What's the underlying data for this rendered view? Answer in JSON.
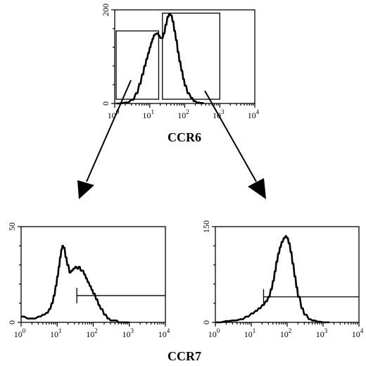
{
  "chart_data": [
    {
      "type": "histogram",
      "xlabel": "CCR6",
      "ylabel": "",
      "x_scale": "log",
      "xlim": [
        1,
        10000
      ],
      "ylim": [
        0,
        200
      ],
      "x_tick_labels": [
        {
          "base": "10",
          "exp": "0"
        },
        {
          "base": "10",
          "exp": "1"
        },
        {
          "base": "10",
          "exp": "2"
        },
        {
          "base": "10",
          "exp": "3"
        },
        {
          "base": "10",
          "exp": "4"
        }
      ],
      "y_tick_labels": [
        "0",
        "200"
      ],
      "x_tick_values": [
        1,
        10,
        100,
        1000,
        10000
      ],
      "y_tick_values": [
        0,
        200
      ],
      "gates": [
        {
          "type": "box",
          "x_range": [
            1.1,
            18
          ],
          "y_max": 155
        },
        {
          "type": "box",
          "x_range": [
            23,
            1000
          ],
          "y_max": 193
        }
      ],
      "series": [
        {
          "x": [
            1.1,
            2,
            3,
            4,
            5,
            6,
            7,
            8,
            9,
            10,
            11,
            12,
            13,
            14,
            16,
            18,
            20,
            22,
            25,
            28,
            32,
            36,
            40,
            45,
            50,
            56,
            63,
            70,
            80,
            90,
            100,
            120,
            150,
            180,
            220,
            280,
            350
          ],
          "y": [
            0,
            2,
            8,
            22,
            42,
            62,
            80,
            95,
            108,
            120,
            130,
            138,
            145,
            148,
            150,
            145,
            140,
            140,
            150,
            168,
            185,
            192,
            188,
            175,
            155,
            135,
            110,
            90,
            70,
            52,
            38,
            22,
            12,
            5,
            2,
            1,
            0
          ]
        }
      ]
    },
    {
      "type": "histogram",
      "xlabel": "CCR7",
      "ylabel": "",
      "x_scale": "log",
      "xlim": [
        1,
        10000
      ],
      "ylim": [
        0,
        50
      ],
      "x_tick_labels": [
        {
          "base": "10",
          "exp": "0"
        },
        {
          "base": "10",
          "exp": "1"
        },
        {
          "base": "10",
          "exp": "2"
        },
        {
          "base": "10",
          "exp": "3"
        },
        {
          "base": "10",
          "exp": "4"
        }
      ],
      "y_tick_labels": [
        "0",
        "50"
      ],
      "x_tick_values": [
        1,
        10,
        100,
        1000,
        10000
      ],
      "y_tick_values": [
        0,
        50
      ],
      "gates": [
        {
          "type": "marker",
          "x_range": [
            35,
            10000
          ],
          "y": 14
        }
      ],
      "series": [
        {
          "x": [
            1,
            1.5,
            2,
            3,
            4,
            5,
            6,
            7,
            8,
            9,
            10,
            11,
            12,
            13,
            14,
            15,
            17,
            19,
            22,
            25,
            28,
            32,
            36,
            40,
            45,
            50,
            56,
            63,
            70,
            80,
            90,
            100,
            120,
            140,
            160,
            200,
            250,
            300,
            400,
            500,
            700,
            1000
          ],
          "y": [
            3,
            2,
            2,
            3,
            4,
            5,
            7,
            10,
            14,
            19,
            24,
            29,
            34,
            38,
            40,
            39,
            34,
            30,
            26,
            27,
            28,
            29,
            28,
            29,
            27,
            27,
            25,
            23,
            21,
            19,
            17,
            15,
            12,
            9,
            7,
            4,
            2,
            1,
            1,
            0,
            0,
            0
          ]
        }
      ]
    },
    {
      "type": "histogram",
      "xlabel": "CCR7",
      "ylabel": "",
      "x_scale": "log",
      "xlim": [
        1,
        10000
      ],
      "ylim": [
        0,
        150
      ],
      "x_tick_labels": [
        {
          "base": "10",
          "exp": "0"
        },
        {
          "base": "10",
          "exp": "1"
        },
        {
          "base": "10",
          "exp": "2"
        },
        {
          "base": "10",
          "exp": "3"
        },
        {
          "base": "10",
          "exp": "4"
        }
      ],
      "y_tick_labels": [
        "0",
        "150"
      ],
      "x_tick_values": [
        1,
        10,
        100,
        1000,
        10000
      ],
      "y_tick_values": [
        0,
        150
      ],
      "gates": [
        {
          "type": "marker",
          "x_range": [
            22,
            10000
          ],
          "y": 40
        }
      ],
      "series": [
        {
          "x": [
            1,
            2,
            3,
            5,
            7,
            10,
            13,
            16,
            20,
            25,
            30,
            35,
            40,
            45,
            50,
            56,
            63,
            70,
            80,
            90,
            100,
            110,
            125,
            140,
            160,
            180,
            200,
            250,
            300,
            400,
            500,
            700,
            1000,
            1500
          ],
          "y": [
            0,
            2,
            3,
            5,
            9,
            14,
            18,
            22,
            27,
            33,
            40,
            52,
            65,
            80,
            95,
            108,
            118,
            126,
            132,
            135,
            132,
            124,
            110,
            92,
            72,
            55,
            40,
            22,
            12,
            5,
            3,
            1,
            0,
            0
          ]
        }
      ]
    }
  ]
}
